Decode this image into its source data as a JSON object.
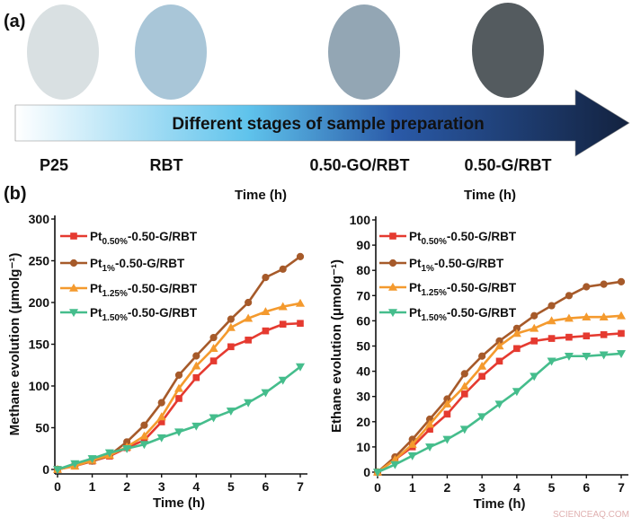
{
  "panel_a": {
    "label": "(a)",
    "arrow_text": "Different stages of sample preparation",
    "samples": [
      {
        "name": "P25",
        "color": "#d9e0e2"
      },
      {
        "name": "RBT",
        "color": "#a9c6d8"
      },
      {
        "name": "0.50-GO/RBT",
        "color": "#93a6b4"
      },
      {
        "name": "0.50-G/RBT",
        "color": "#545b5f"
      }
    ],
    "arrow_colors": [
      "#ffffff",
      "#5fc3ec",
      "#2a5aa8",
      "#13223f"
    ]
  },
  "panel_b": {
    "label": "(b)"
  },
  "watermark": "SCIENCEAQ.COM",
  "chart_data": [
    {
      "type": "line",
      "top_label": "Time (h)",
      "xlabel": "Time (h)",
      "ylabel": "Methane evolution (μmolg⁻¹)",
      "xlim": [
        0,
        7
      ],
      "ylim": [
        0,
        300
      ],
      "xticks": [
        0,
        1,
        2,
        3,
        4,
        5,
        6,
        7
      ],
      "yticks": [
        0,
        50,
        100,
        150,
        200,
        250,
        300
      ],
      "legend": "top-left",
      "x": [
        0,
        0.5,
        1,
        1.5,
        2,
        2.5,
        3,
        3.5,
        4,
        4.5,
        5,
        5.5,
        6,
        6.5,
        7
      ],
      "series": [
        {
          "label": {
            "base": "Pt",
            "sub": "0.50%",
            "rest": "-0.50-G/RBT"
          },
          "color": "#e53a30",
          "marker": "square",
          "values": [
            0,
            4,
            10,
            16,
            26,
            35,
            57,
            85,
            110,
            130,
            147,
            155,
            166,
            174,
            175
          ]
        },
        {
          "label": {
            "base": "Pt",
            "sub": "1%",
            "rest": "-0.50-G/RBT"
          },
          "color": "#a65a2a",
          "marker": "circle",
          "values": [
            0,
            5,
            10,
            17,
            33,
            53,
            80,
            113,
            136,
            158,
            180,
            200,
            230,
            240,
            255
          ]
        },
        {
          "label": {
            "base": "Pt",
            "sub": "1.25%",
            "rest": "-0.50-G/RBT"
          },
          "color": "#f49a2e",
          "marker": "triangle-up",
          "values": [
            0,
            4,
            11,
            17,
            27,
            40,
            63,
            97,
            124,
            145,
            170,
            181,
            189,
            195,
            199
          ]
        },
        {
          "label": {
            "base": "Pt",
            "sub": "1.50%",
            "rest": "-0.50-G/RBT"
          },
          "color": "#45bd8c",
          "marker": "triangle-down",
          "values": [
            0,
            7,
            13,
            20,
            25,
            30,
            38,
            45,
            52,
            62,
            70,
            80,
            92,
            107,
            123
          ]
        }
      ]
    },
    {
      "type": "line",
      "top_label": "Time (h)",
      "xlabel": "Time (h)",
      "ylabel": "Ethane evolution (μmolg⁻¹)",
      "xlim": [
        0,
        7
      ],
      "ylim": [
        0,
        100
      ],
      "xticks": [
        0,
        1,
        2,
        3,
        4,
        5,
        6,
        7
      ],
      "yticks": [
        0,
        10,
        20,
        30,
        40,
        50,
        60,
        70,
        80,
        90,
        100
      ],
      "legend": "top-left",
      "x": [
        0,
        0.5,
        1,
        1.5,
        2,
        2.5,
        3,
        3.5,
        4,
        4.5,
        5,
        5.5,
        6,
        6.5,
        7
      ],
      "series": [
        {
          "label": {
            "base": "Pt",
            "sub": "0.50%",
            "rest": "-0.50-G/RBT"
          },
          "color": "#e53a30",
          "marker": "square",
          "values": [
            0,
            5,
            10,
            17,
            23,
            31,
            38,
            44,
            49,
            52,
            53,
            53.5,
            54,
            54.5,
            55
          ]
        },
        {
          "label": {
            "base": "Pt",
            "sub": "1%",
            "rest": "-0.50-G/RBT"
          },
          "color": "#a65a2a",
          "marker": "circle",
          "values": [
            0,
            6,
            13,
            21,
            29,
            39,
            46,
            52,
            57,
            62,
            66,
            70,
            73.5,
            74.5,
            75.5
          ]
        },
        {
          "label": {
            "base": "Pt",
            "sub": "1.25%",
            "rest": "-0.50-G/RBT"
          },
          "color": "#f49a2e",
          "marker": "triangle-up",
          "values": [
            0,
            5,
            11,
            19,
            27,
            34,
            42,
            50,
            55,
            57,
            60,
            61,
            61.5,
            61.5,
            62
          ]
        },
        {
          "label": {
            "base": "Pt",
            "sub": "1.50%",
            "rest": "-0.50-G/RBT"
          },
          "color": "#45bd8c",
          "marker": "triangle-down",
          "values": [
            0,
            3,
            6.5,
            10,
            13,
            17,
            22,
            27,
            32,
            38,
            44,
            46,
            46,
            46.5,
            47
          ]
        }
      ]
    }
  ]
}
